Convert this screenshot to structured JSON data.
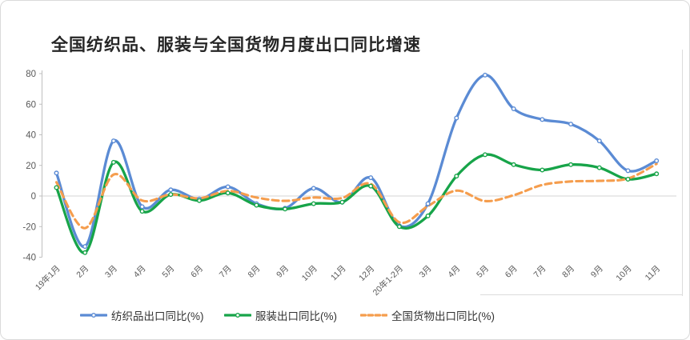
{
  "chart_data": {
    "type": "line",
    "title": "全国纺织品、服装与全国货物月度出口同比增速",
    "categories": [
      "19年1月",
      "2月",
      "3月",
      "4月",
      "5月",
      "6月",
      "7月",
      "8月",
      "9月",
      "10月",
      "11月",
      "12月",
      "20年1-2月",
      "3月",
      "4月",
      "5月",
      "6月",
      "7月",
      "8月",
      "9月",
      "10月",
      "11月"
    ],
    "series": [
      {
        "name": "纺织品出口同比(%)",
        "color": "#5B8BD4",
        "style": "solid",
        "marker": true,
        "values": [
          15,
          -33,
          36,
          -7,
          4,
          -2,
          6,
          -5,
          -8,
          5,
          -4,
          12,
          -19.5,
          -5,
          51,
          79,
          57,
          50,
          47,
          36,
          16.5,
          23
        ]
      },
      {
        "name": "服装出口同比(%)",
        "color": "#17A449",
        "style": "solid",
        "marker": true,
        "values": [
          5.5,
          -37,
          22,
          -10,
          1,
          -3,
          2,
          -6,
          -8.5,
          -5,
          -4,
          6.5,
          -20,
          -13,
          13,
          27,
          20.5,
          17,
          20.5,
          18.5,
          11,
          14.5
        ]
      },
      {
        "name": "全国货物出口同比(%)",
        "color": "#F59D4D",
        "style": "dashed",
        "marker": false,
        "values": [
          9,
          -21,
          14,
          -3,
          1,
          -1.5,
          3.3,
          -1,
          -3.2,
          -1,
          -1.3,
          7.9,
          -17.2,
          -6.6,
          3.5,
          -3.3,
          0.5,
          7.2,
          9.5,
          9.9,
          11.4,
          21
        ]
      }
    ],
    "yticks": [
      80,
      60,
      40,
      20,
      0,
      "-20",
      "-40"
    ],
    "ytick_values": [
      80,
      60,
      40,
      20,
      0,
      -20,
      -40
    ],
    "ylim": [
      -40,
      80
    ],
    "grid": "zero-line-only",
    "legend_position": "bottom",
    "axis_color": "#BFBFBF",
    "gridline_color": "#D6D6D6",
    "tick_label_color": "#595959"
  }
}
